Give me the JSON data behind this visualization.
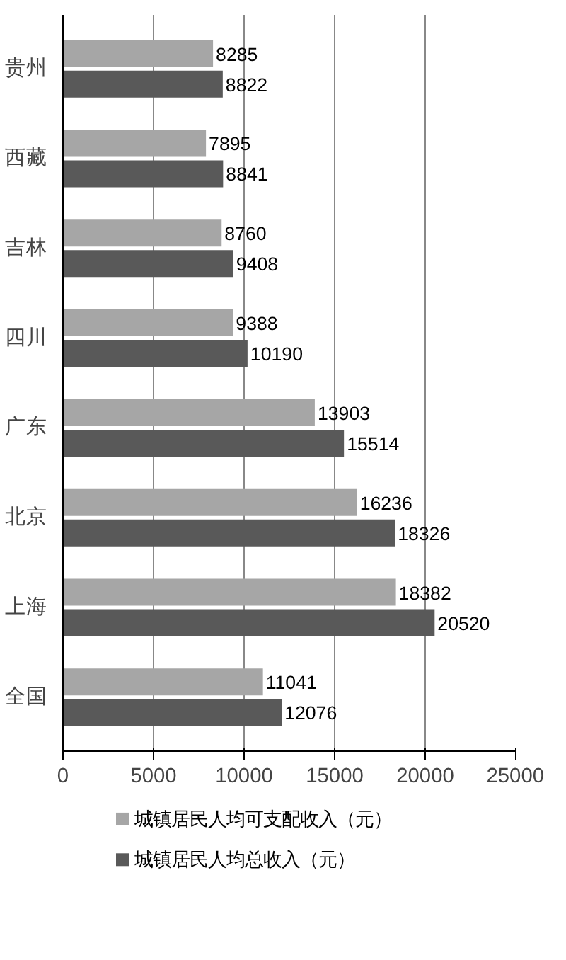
{
  "chart_data": {
    "type": "bar",
    "orientation": "horizontal",
    "categories": [
      "贵州",
      "西藏",
      "吉林",
      "四川",
      "广东",
      "北京",
      "上海",
      "全国"
    ],
    "series": [
      {
        "name": "城镇居民人均可支配收入（元）",
        "color": "#a6a6a6",
        "values": [
          8285,
          7895,
          8760,
          9388,
          13903,
          16236,
          18382,
          11041
        ]
      },
      {
        "name": "城镇居民人均总收入（元）",
        "color": "#595959",
        "values": [
          8822,
          8841,
          9408,
          10190,
          15514,
          18326,
          20520,
          12076
        ]
      }
    ],
    "xlim": [
      0,
      25000
    ],
    "xticks": [
      0,
      5000,
      10000,
      15000,
      20000,
      25000
    ],
    "grid": "x",
    "legend": "bottom",
    "data_labels": true
  }
}
